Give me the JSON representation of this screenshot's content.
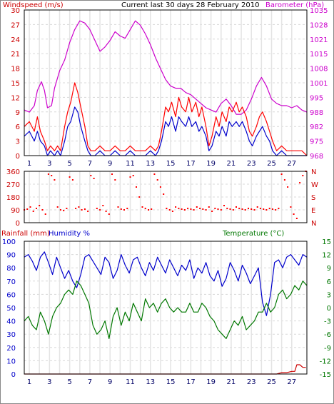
{
  "panels": {
    "top": {
      "title": "Current last 30 days 28 February 2010",
      "left_label": "Windspeed (m/s)",
      "right_label": "Barometer (hPa)",
      "left_ticks": [
        "30",
        "27",
        "24",
        "21",
        "18",
        "15",
        "12",
        "9",
        "6",
        "3",
        "0"
      ],
      "right_ticks": [
        "1035",
        "1028",
        "1021",
        "1015",
        "1008",
        "1001",
        "995",
        "988",
        "982",
        "975",
        "968"
      ],
      "x_ticks": [
        "1",
        "3",
        "5",
        "7",
        "9",
        "11",
        "13",
        "15",
        "17",
        "19",
        "21",
        "23",
        "25",
        "27"
      ]
    },
    "middle": {
      "left_ticks": [
        "360",
        "270",
        "180",
        "90",
        "0"
      ],
      "right_ticks": [
        "N",
        "W",
        "S",
        "E",
        "N"
      ]
    },
    "bottom": {
      "left_label": "Rainfall (mm)",
      "left_label2": "Humidity %",
      "right_label": "Temperature (°C)",
      "left_ticks": [
        "100",
        "90",
        "80",
        "70",
        "60",
        "50",
        "40",
        "30",
        "20",
        "10",
        "0"
      ],
      "right_ticks": [
        "15",
        "12",
        "9",
        "6",
        "3",
        "0",
        "-3",
        "-6",
        "-9",
        "-12",
        "-15"
      ],
      "x_ticks": [
        "1",
        "3",
        "5",
        "7",
        "9",
        "11",
        "13",
        "15",
        "17",
        "19",
        "21",
        "23",
        "25",
        "27"
      ]
    }
  },
  "colors": {
    "wind_gust": "#ff0000",
    "wind_avg": "#0000cc",
    "barometer": "#cc00cc",
    "direction": "#ff0000",
    "humidity": "#0000cc",
    "temperature": "#007700",
    "rainfall": "#cc0000",
    "left_axis_top": "#cc0000",
    "right_axis_top": "#cc00cc",
    "right_axis_bottom": "#007700",
    "grid": "#d8d8d8"
  },
  "chart_data": [
    {
      "type": "line",
      "x_range": [
        0,
        28
      ],
      "series": [
        {
          "name": "Barometer (hPa)",
          "axis": "right",
          "ylim": [
            968,
            1035
          ],
          "x": [
            0,
            0.5,
            1,
            1.3,
            1.7,
            2,
            2.3,
            2.7,
            3,
            3.5,
            4,
            4.5,
            5,
            5.5,
            6,
            6.5,
            7,
            7.5,
            8,
            8.5,
            9,
            9.5,
            10,
            10.5,
            11,
            11.5,
            12,
            12.5,
            13,
            13.5,
            14,
            14.5,
            15,
            15.5,
            16,
            16.5,
            17,
            17.5,
            18,
            18.5,
            19,
            19.5,
            20,
            20.5,
            21,
            21.5,
            22,
            22.5,
            23,
            23.5,
            24,
            24.5,
            25,
            25.5,
            26,
            26.5,
            27,
            27.5,
            28
          ],
          "values": [
            989,
            988,
            991,
            998,
            1002,
            998,
            990,
            991,
            999,
            1007,
            1012,
            1020,
            1026,
            1030,
            1029,
            1026,
            1021,
            1016,
            1018,
            1021,
            1025,
            1023,
            1022,
            1026,
            1030,
            1028,
            1024,
            1019,
            1013,
            1008,
            1003,
            1000,
            999,
            999,
            997,
            996,
            994,
            992,
            990,
            989,
            988,
            992,
            994,
            991,
            987,
            987,
            989,
            994,
            1000,
            1004,
            1000,
            994,
            992,
            991,
            991,
            990,
            991,
            989,
            988
          ]
        },
        {
          "name": "Windspeed gust (m/s)",
          "axis": "left",
          "ylim": [
            0,
            30
          ],
          "x": [
            0,
            0.5,
            1,
            1.3,
            1.6,
            2,
            2.3,
            2.6,
            3,
            3.3,
            3.6,
            4,
            4.3,
            4.6,
            5,
            5.3,
            5.6,
            6,
            6.3,
            6.6,
            7,
            7.5,
            8,
            8.5,
            9,
            9.5,
            10,
            10.5,
            11,
            11.5,
            12,
            12.5,
            13,
            13.3,
            13.6,
            14,
            14.3,
            14.6,
            15,
            15.3,
            15.6,
            16,
            16.3,
            16.6,
            17,
            17.3,
            17.6,
            18,
            18.3,
            18.6,
            19,
            19.3,
            19.6,
            20,
            20.3,
            20.6,
            21,
            21.3,
            21.6,
            22,
            22.3,
            22.6,
            23,
            23.3,
            23.6,
            24,
            24.3,
            24.6,
            25,
            25.5,
            26,
            26.5,
            27,
            27.5,
            28
          ],
          "values": [
            6,
            7,
            5,
            8,
            5,
            3,
            1,
            2,
            1,
            2,
            1,
            6,
            9,
            11,
            15,
            13,
            10,
            6,
            2,
            1,
            1,
            2,
            1,
            1,
            2,
            1,
            1,
            2,
            1,
            1,
            1,
            2,
            1,
            2,
            5,
            10,
            9,
            11,
            8,
            12,
            10,
            9,
            12,
            9,
            11,
            8,
            10,
            6,
            2,
            4,
            8,
            6,
            9,
            7,
            10,
            9,
            11,
            9,
            10,
            8,
            5,
            4,
            6,
            8,
            9,
            7,
            5,
            3,
            1,
            2,
            1,
            1,
            1,
            1,
            0
          ]
        },
        {
          "name": "Windspeed average (m/s)",
          "axis": "left",
          "ylim": [
            0,
            30
          ],
          "x": [
            0,
            0.5,
            1,
            1.3,
            1.6,
            2,
            2.3,
            2.6,
            3,
            3.3,
            3.6,
            4,
            4.3,
            4.6,
            5,
            5.3,
            5.6,
            6,
            6.3,
            6.6,
            7,
            7.5,
            8,
            8.5,
            9,
            9.5,
            10,
            10.5,
            11,
            11.5,
            12,
            12.5,
            13,
            13.3,
            13.6,
            14,
            14.3,
            14.6,
            15,
            15.3,
            15.6,
            16,
            16.3,
            16.6,
            17,
            17.3,
            17.6,
            18,
            18.3,
            18.6,
            19,
            19.3,
            19.6,
            20,
            20.3,
            20.6,
            21,
            21.3,
            21.6,
            22,
            22.3,
            22.6,
            23,
            23.3,
            23.6,
            24,
            24.3,
            24.6,
            25,
            25.5,
            26,
            26.5,
            27,
            27.5,
            28
          ],
          "values": [
            4,
            5,
            3,
            5,
            3,
            2,
            0,
            1,
            0,
            1,
            0,
            3,
            6,
            7,
            10,
            9,
            6,
            3,
            1,
            0,
            0,
            1,
            0,
            0,
            1,
            0,
            0,
            1,
            0,
            0,
            0,
            1,
            0,
            1,
            3,
            7,
            6,
            8,
            5,
            8,
            7,
            6,
            8,
            6,
            7,
            5,
            6,
            4,
            1,
            2,
            5,
            4,
            6,
            4,
            7,
            6,
            7,
            6,
            7,
            5,
            3,
            2,
            4,
            5,
            6,
            4,
            3,
            1,
            0,
            1,
            0,
            0,
            0,
            0,
            0
          ]
        }
      ]
    },
    {
      "type": "scatter",
      "name": "Wind direction",
      "ylim": [
        0,
        360
      ],
      "x": [
        0,
        0.3,
        0.6,
        0.9,
        1.2,
        1.5,
        1.8,
        2.1,
        2.4,
        2.7,
        3,
        3.3,
        3.6,
        3.9,
        4.2,
        4.5,
        4.8,
        5.1,
        5.4,
        5.7,
        6,
        6.3,
        6.6,
        6.9,
        7.2,
        7.5,
        7.8,
        8.1,
        8.4,
        8.7,
        9,
        9.3,
        9.6,
        9.9,
        10.2,
        10.5,
        10.8,
        11.1,
        11.4,
        11.7,
        12,
        12.3,
        12.6,
        12.9,
        13.2,
        13.5,
        13.8,
        14.1,
        14.4,
        14.7,
        15,
        15.3,
        15.6,
        15.9,
        16.2,
        16.5,
        16.8,
        17.1,
        17.4,
        17.7,
        18,
        18.3,
        18.6,
        18.9,
        19.2,
        19.5,
        19.8,
        20.1,
        20.4,
        20.7,
        21,
        21.3,
        21.6,
        21.9,
        22.2,
        22.5,
        22.8,
        23.1,
        23.4,
        23.7,
        24,
        24.3,
        24.6,
        24.9,
        25.2,
        25.5,
        25.8,
        26.1,
        26.4,
        26.7,
        27,
        27.3,
        27.6,
        27.9
      ],
      "values": [
        90,
        95,
        110,
        80,
        100,
        120,
        90,
        60,
        340,
        330,
        300,
        110,
        90,
        85,
        100,
        320,
        300,
        100,
        110,
        90,
        95,
        80,
        330,
        310,
        100,
        90,
        120,
        80,
        60,
        340,
        300,
        110,
        95,
        90,
        100,
        320,
        330,
        250,
        180,
        110,
        100,
        90,
        95,
        340,
        300,
        250,
        200,
        100,
        90,
        80,
        110,
        100,
        95,
        90,
        100,
        95,
        90,
        110,
        100,
        95,
        90,
        110,
        80,
        100,
        95,
        90,
        120,
        100,
        95,
        90,
        110,
        100,
        95,
        90,
        100,
        95,
        90,
        110,
        100,
        95,
        90,
        100,
        95,
        90,
        100,
        340,
        300,
        250,
        110,
        60,
        30,
        280,
        330,
        360
      ]
    },
    {
      "type": "line",
      "x_range": [
        0,
        28
      ],
      "series": [
        {
          "name": "Humidity %",
          "axis": "left",
          "ylim": [
            0,
            100
          ],
          "x": [
            0,
            0.4,
            0.8,
            1.2,
            1.6,
            2,
            2.4,
            2.8,
            3.2,
            3.6,
            4,
            4.4,
            4.8,
            5.2,
            5.6,
            6,
            6.4,
            6.8,
            7.2,
            7.6,
            8,
            8.4,
            8.8,
            9.2,
            9.6,
            10,
            10.4,
            10.8,
            11.2,
            11.6,
            12,
            12.4,
            12.8,
            13.2,
            13.6,
            14,
            14.4,
            14.8,
            15.2,
            15.6,
            16,
            16.4,
            16.8,
            17.2,
            17.6,
            18,
            18.4,
            18.8,
            19.2,
            19.6,
            20,
            20.4,
            20.8,
            21.2,
            21.6,
            22,
            22.4,
            22.8,
            23.2,
            23.6,
            24,
            24.4,
            24.8,
            25.2,
            25.6,
            26,
            26.4,
            26.8,
            27.2,
            27.6,
            28
          ],
          "values": [
            88,
            90,
            85,
            78,
            88,
            92,
            84,
            75,
            88,
            80,
            72,
            78,
            70,
            65,
            75,
            88,
            90,
            85,
            80,
            75,
            88,
            84,
            72,
            78,
            90,
            82,
            76,
            86,
            88,
            80,
            74,
            84,
            78,
            88,
            82,
            76,
            86,
            80,
            74,
            82,
            78,
            86,
            72,
            80,
            76,
            84,
            74,
            70,
            78,
            66,
            72,
            84,
            78,
            70,
            82,
            76,
            68,
            74,
            80,
            54,
            44,
            60,
            84,
            86,
            80,
            88,
            90,
            86,
            82,
            90,
            88
          ]
        },
        {
          "name": "Temperature (°C)",
          "axis": "right",
          "ylim": [
            -15,
            15
          ],
          "x": [
            0,
            0.4,
            0.8,
            1.2,
            1.6,
            2,
            2.4,
            2.8,
            3.2,
            3.6,
            4,
            4.4,
            4.8,
            5.2,
            5.6,
            6,
            6.4,
            6.8,
            7.2,
            7.6,
            8,
            8.4,
            8.8,
            9.2,
            9.6,
            10,
            10.4,
            10.8,
            11.2,
            11.6,
            12,
            12.4,
            12.8,
            13.2,
            13.6,
            14,
            14.4,
            14.8,
            15.2,
            15.6,
            16,
            16.4,
            16.8,
            17.2,
            17.6,
            18,
            18.4,
            18.8,
            19.2,
            19.6,
            20,
            20.4,
            20.8,
            21.2,
            21.6,
            22,
            22.4,
            22.8,
            23.2,
            23.6,
            24,
            24.4,
            24.8,
            25.2,
            25.6,
            26,
            26.4,
            26.8,
            27.2,
            27.6,
            28
          ],
          "values": [
            -3,
            -2,
            -4,
            -5,
            -1,
            -3,
            -6,
            -2,
            0,
            1,
            3,
            4,
            3,
            6,
            5,
            3,
            1,
            -4,
            -6,
            -5,
            -3,
            -7,
            -2,
            0,
            -4,
            -1,
            -3,
            1,
            -1,
            -3,
            2,
            0,
            1,
            -1,
            1,
            2,
            0,
            -1,
            0,
            -1,
            -1,
            1,
            -1,
            -1,
            1,
            0,
            -2,
            -3,
            -5,
            -6,
            -7,
            -5,
            -3,
            -4,
            -2,
            -5,
            -4,
            -3,
            -1,
            -1,
            1,
            -1,
            0,
            3,
            4,
            2,
            3,
            5,
            4,
            6,
            5
          ]
        },
        {
          "name": "Rainfall (mm)",
          "axis": "left",
          "ylim": [
            0,
            100
          ],
          "x": [
            0,
            3,
            6,
            9,
            12,
            15,
            18,
            21,
            24,
            25,
            25.5,
            26,
            26.5,
            26.8,
            27,
            27.3,
            27.6,
            27.9
          ],
          "values": [
            0,
            0,
            0,
            0,
            0,
            0,
            0,
            0,
            0,
            0,
            1,
            1,
            2,
            2,
            7,
            7,
            5,
            5
          ]
        }
      ]
    }
  ]
}
